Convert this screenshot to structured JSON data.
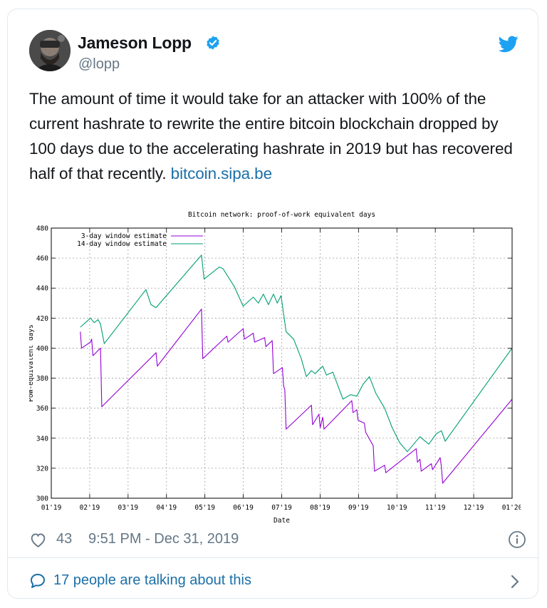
{
  "tweet": {
    "author_name": "Jameson Lopp",
    "author_handle": "@lopp",
    "text": "The amount of time it would take for an attacker with 100% of the current hashrate to rewrite the entire bitcoin blockchain dropped by 100 days due to the accelerating hashrate in 2019 but has recovered half of that recently.",
    "link": "bitcoin.sipa.be",
    "likes": "43",
    "timestamp": "9:51 PM - Dec 31, 2019",
    "talking": "17 people are talking about this"
  },
  "colors": {
    "link": "#1b6fa8",
    "twitter_blue": "#1da1f2",
    "muted": "#657786",
    "series_3day": "#9400d3",
    "series_14day": "#009e73"
  },
  "icons": [
    "verified-badge-icon",
    "twitter-bird-icon",
    "heart-icon",
    "info-icon",
    "speech-bubble-icon",
    "chevron-right-icon"
  ],
  "chart_data": {
    "type": "line",
    "title": "Bitcoin network: proof-of-work equivalent days",
    "xlabel": "Date",
    "ylabel": "PoW-equivalent days",
    "ylim": [
      300,
      480
    ],
    "yticks": [
      300,
      320,
      340,
      360,
      380,
      400,
      420,
      440,
      460,
      480
    ],
    "xticks": [
      "01'19",
      "02'19",
      "03'19",
      "04'19",
      "05'19",
      "06'19",
      "07'19",
      "08'19",
      "09'19",
      "10'19",
      "11'19",
      "12'19",
      "01'20"
    ],
    "grid": true,
    "legend_position": "top-left",
    "series": [
      {
        "name": "3-day window estimate",
        "color": "#9400d3",
        "points": [
          [
            "2019-01-24",
            411
          ],
          [
            "2019-01-25",
            400
          ],
          [
            "2019-02-01",
            404
          ],
          [
            "2019-02-02",
            406
          ],
          [
            "2019-02-03",
            395
          ],
          [
            "2019-02-09",
            400
          ],
          [
            "2019-02-10",
            361
          ],
          [
            "2019-03-25",
            397
          ],
          [
            "2019-03-26",
            388
          ],
          [
            "2019-04-30",
            426
          ],
          [
            "2019-05-01",
            393
          ],
          [
            "2019-05-20",
            408
          ],
          [
            "2019-05-21",
            404
          ],
          [
            "2019-06-02",
            413
          ],
          [
            "2019-06-03",
            406
          ],
          [
            "2019-06-10",
            410
          ],
          [
            "2019-06-11",
            404
          ],
          [
            "2019-06-19",
            407
          ],
          [
            "2019-06-20",
            401
          ],
          [
            "2019-06-25",
            405
          ],
          [
            "2019-06-26",
            383
          ],
          [
            "2019-07-03",
            387
          ],
          [
            "2019-07-04",
            375
          ],
          [
            "2019-07-05",
            372
          ],
          [
            "2019-07-06",
            346
          ],
          [
            "2019-07-26",
            362
          ],
          [
            "2019-07-27",
            349
          ],
          [
            "2019-08-01",
            356
          ],
          [
            "2019-08-02",
            347
          ],
          [
            "2019-08-04",
            354
          ],
          [
            "2019-08-05",
            346
          ],
          [
            "2019-08-27",
            365
          ],
          [
            "2019-08-28",
            357
          ],
          [
            "2019-08-31",
            359
          ],
          [
            "2019-09-01",
            352
          ],
          [
            "2019-09-06",
            350
          ],
          [
            "2019-09-07",
            344
          ],
          [
            "2019-09-13",
            335
          ],
          [
            "2019-09-14",
            318
          ],
          [
            "2019-09-22",
            322
          ],
          [
            "2019-09-23",
            317
          ],
          [
            "2019-10-17",
            333
          ],
          [
            "2019-10-18",
            324
          ],
          [
            "2019-10-20",
            326
          ],
          [
            "2019-10-21",
            318
          ],
          [
            "2019-10-29",
            323
          ],
          [
            "2019-10-30",
            319
          ],
          [
            "2019-11-05",
            327
          ],
          [
            "2019-11-06",
            321
          ],
          [
            "2019-11-07",
            310
          ],
          [
            "2020-01-01",
            366
          ]
        ]
      },
      {
        "name": "14-day window estimate",
        "color": "#009e73",
        "points": [
          [
            "2019-01-24",
            414
          ],
          [
            "2019-02-01",
            420
          ],
          [
            "2019-02-04",
            417
          ],
          [
            "2019-02-07",
            419
          ],
          [
            "2019-02-09",
            416
          ],
          [
            "2019-02-12",
            403
          ],
          [
            "2019-03-17",
            439
          ],
          [
            "2019-03-21",
            429
          ],
          [
            "2019-03-25",
            427
          ],
          [
            "2019-04-30",
            462
          ],
          [
            "2019-05-02",
            446
          ],
          [
            "2019-05-14",
            454
          ],
          [
            "2019-05-17",
            453
          ],
          [
            "2019-05-26",
            441
          ],
          [
            "2019-06-02",
            428
          ],
          [
            "2019-06-10",
            434
          ],
          [
            "2019-06-14",
            430
          ],
          [
            "2019-06-18",
            436
          ],
          [
            "2019-06-22",
            429
          ],
          [
            "2019-06-26",
            436
          ],
          [
            "2019-06-29",
            430
          ],
          [
            "2019-07-02",
            435
          ],
          [
            "2019-07-06",
            411
          ],
          [
            "2019-07-12",
            406
          ],
          [
            "2019-07-18",
            393
          ],
          [
            "2019-07-22",
            381
          ],
          [
            "2019-07-26",
            385
          ],
          [
            "2019-07-29",
            383
          ],
          [
            "2019-08-04",
            388
          ],
          [
            "2019-08-07",
            382
          ],
          [
            "2019-08-12",
            384
          ],
          [
            "2019-08-16",
            375
          ],
          [
            "2019-08-20",
            366
          ],
          [
            "2019-08-26",
            369
          ],
          [
            "2019-08-31",
            368
          ],
          [
            "2019-09-05",
            376
          ],
          [
            "2019-09-10",
            381
          ],
          [
            "2019-09-15",
            370
          ],
          [
            "2019-09-22",
            360
          ],
          [
            "2019-09-28",
            347
          ],
          [
            "2019-10-04",
            337
          ],
          [
            "2019-10-10",
            331
          ],
          [
            "2019-10-20",
            341
          ],
          [
            "2019-10-27",
            336
          ],
          [
            "2019-11-02",
            343
          ],
          [
            "2019-11-06",
            345
          ],
          [
            "2019-11-09",
            338
          ],
          [
            "2020-01-01",
            400
          ]
        ]
      }
    ]
  }
}
